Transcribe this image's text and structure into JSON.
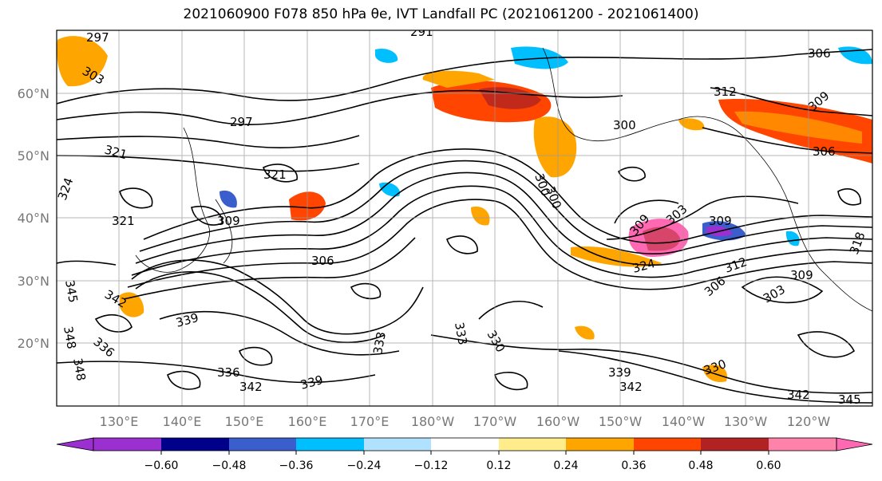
{
  "title": "2021060900 F078 850 hPa θe, IVT Landfall PC (2021061200 - 2021061400)",
  "lat_labels": [
    "60°N",
    "50°N",
    "40°N",
    "30°N",
    "20°N"
  ],
  "lon_labels": [
    "130°E",
    "140°E",
    "150°E",
    "160°E",
    "170°E",
    "180°W",
    "170°W",
    "160°W",
    "150°W",
    "140°W",
    "130°W",
    "120°W"
  ],
  "colorbar": {
    "ticks": [
      "−0.60",
      "−0.48",
      "−0.36",
      "−0.24",
      "−0.12",
      "0.12",
      "0.24",
      "0.36",
      "0.48",
      "0.60"
    ],
    "colors": [
      "#9b30d0",
      "#00008b",
      "#3a5fcd",
      "#00bfff",
      "#b0e2ff",
      "#ffffff",
      "#ffec8b",
      "#ffa500",
      "#ff4500",
      "#b22222",
      "#ff82ab",
      "#ff69b4"
    ]
  },
  "contour_labels": [
    {
      "text": "297"
    },
    {
      "text": "303"
    },
    {
      "text": "297"
    },
    {
      "text": "321"
    },
    {
      "text": "321"
    },
    {
      "text": "324"
    },
    {
      "text": "321"
    },
    {
      "text": "309"
    },
    {
      "text": "306"
    },
    {
      "text": "342"
    },
    {
      "text": "339"
    },
    {
      "text": "345"
    },
    {
      "text": "336"
    },
    {
      "text": "342"
    },
    {
      "text": "339"
    },
    {
      "text": "336"
    },
    {
      "text": "333"
    },
    {
      "text": "333"
    },
    {
      "text": "330"
    },
    {
      "text": "300"
    },
    {
      "text": "300"
    },
    {
      "text": "309"
    },
    {
      "text": "303"
    },
    {
      "text": "309"
    },
    {
      "text": "324"
    },
    {
      "text": "312"
    },
    {
      "text": "306"
    },
    {
      "text": "309"
    },
    {
      "text": "303"
    },
    {
      "text": "309"
    },
    {
      "text": "306"
    },
    {
      "text": "306"
    },
    {
      "text": "312"
    },
    {
      "text": "330"
    },
    {
      "text": "339"
    },
    {
      "text": "342"
    },
    {
      "text": "342"
    },
    {
      "text": "345"
    },
    {
      "text": "291"
    },
    {
      "text": "300"
    },
    {
      "text": "318"
    },
    {
      "text": "348"
    },
    {
      "text": "348"
    }
  ]
}
